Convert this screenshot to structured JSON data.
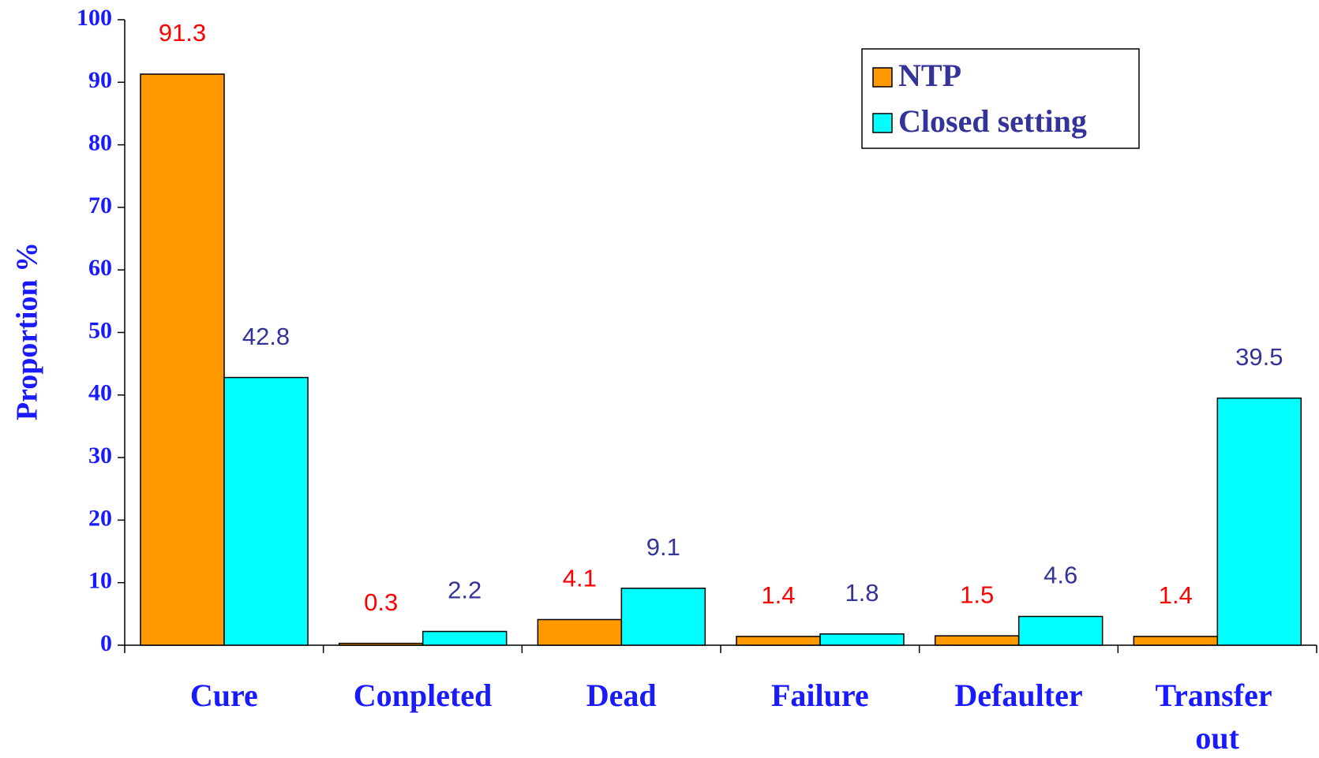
{
  "chart_data": {
    "type": "bar",
    "y_label": "Proportion  %",
    "categories": [
      "Cure",
      "Conpleted",
      "Dead",
      "Failure",
      "Defaulter",
      "Transfer out"
    ],
    "series": [
      {
        "name": "NTP",
        "color": "#ff9900",
        "label_color": "#ff0000",
        "values": [
          91.3,
          0.3,
          4.1,
          1.4,
          1.5,
          1.4
        ]
      },
      {
        "name": "Closed setting",
        "color": "#00ffff",
        "label_color": "#333399",
        "values": [
          42.8,
          2.2,
          9.1,
          1.8,
          4.6,
          39.5
        ]
      }
    ],
    "ylim": [
      0,
      100
    ],
    "yticks": [
      0,
      10,
      20,
      30,
      40,
      50,
      60,
      70,
      80,
      90,
      100
    ],
    "grid": false,
    "legend": "upper right"
  }
}
